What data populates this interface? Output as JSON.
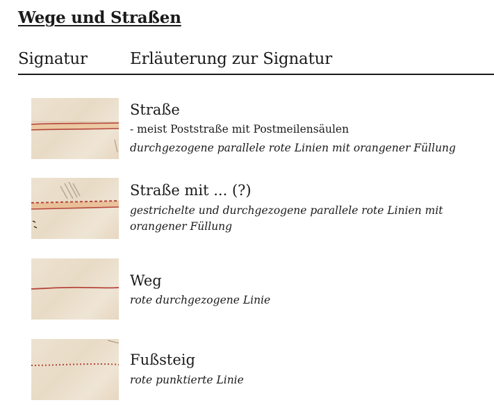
{
  "section": {
    "title": "Wege und Straßen"
  },
  "table_header": {
    "signatur": "Signatur",
    "erlaeuterung": "Erläuterung zur Signatur"
  },
  "entries": [
    {
      "title": "Straße",
      "note": "- meist Poststraße mit Postmeilensäulen",
      "description": "durchgezogene parallele rote Linien mit orangener Füllung",
      "swatch_icon": "double-solid-red-line-orange-fill"
    },
    {
      "title": "Straße mit ... (?)",
      "description": "gestrichelte und durchgezogene parallele rote Linien mit orangener Füllung",
      "swatch_icon": "dashed-and-solid-red-line-orange-fill"
    },
    {
      "title": "Weg",
      "description": "rote durchgezogene Linie",
      "swatch_icon": "single-solid-red-line"
    },
    {
      "title": "Fußsteig",
      "description": "rote punktierte Linie",
      "swatch_icon": "dotted-red-line"
    }
  ],
  "colors": {
    "line_red": "#b5453a",
    "fill_orange": "#e9b98c",
    "paper": "#ece0cd"
  }
}
